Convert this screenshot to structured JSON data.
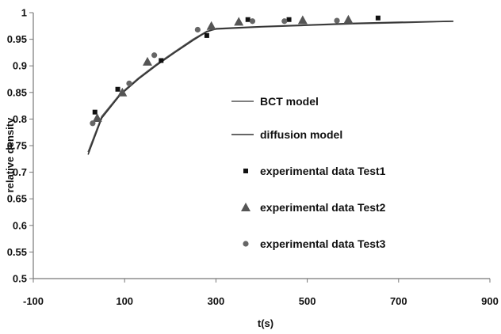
{
  "chart_data": {
    "type": "scatter",
    "title": "",
    "xlabel": "t(s)",
    "ylabel": "relative density",
    "xlim": [
      -100,
      900
    ],
    "ylim": [
      0.5,
      1
    ],
    "xticks": [
      "-100",
      "100",
      "300",
      "500",
      "700",
      "900"
    ],
    "yticks": [
      "0.5",
      "0.55",
      "0.6",
      "0.65",
      "0.7",
      "0.75",
      "0.8",
      "0.85",
      "0.9",
      "0.95",
      "1"
    ],
    "grid": false,
    "legend_position": "right-center",
    "series": [
      {
        "name": "BCT model",
        "kind": "line",
        "color": "#555555",
        "x": [
          20,
          50,
          90,
          130,
          170,
          210,
          250,
          280,
          300,
          350,
          400,
          500,
          600,
          700,
          820
        ],
        "y": [
          0.738,
          0.805,
          0.847,
          0.877,
          0.903,
          0.927,
          0.95,
          0.965,
          0.969,
          0.971,
          0.973,
          0.976,
          0.979,
          0.981,
          0.984
        ]
      },
      {
        "name": "diffusion model",
        "kind": "line",
        "color": "#333333",
        "x": [
          20,
          50,
          90,
          130,
          170,
          210,
          250,
          280,
          300,
          350,
          400,
          500,
          600,
          700,
          820
        ],
        "y": [
          0.733,
          0.802,
          0.845,
          0.875,
          0.901,
          0.925,
          0.948,
          0.964,
          0.97,
          0.972,
          0.974,
          0.977,
          0.98,
          0.982,
          0.984
        ]
      },
      {
        "name": "experimental data Test1",
        "kind": "scatter",
        "marker": "square",
        "color": "#111111",
        "x": [
          35,
          85,
          180,
          280,
          370,
          460,
          655
        ],
        "y": [
          0.813,
          0.856,
          0.91,
          0.957,
          0.987,
          0.987,
          0.99
        ]
      },
      {
        "name": "experimental data Test2",
        "kind": "scatter",
        "marker": "triangle",
        "color": "#555555",
        "x": [
          40,
          95,
          150,
          290,
          350,
          490,
          590
        ],
        "y": [
          0.802,
          0.85,
          0.908,
          0.975,
          0.983,
          0.986,
          0.987
        ]
      },
      {
        "name": "experimental data Test3",
        "kind": "scatter",
        "marker": "circle",
        "color": "#666666",
        "x": [
          30,
          110,
          165,
          260,
          380,
          450,
          565
        ],
        "y": [
          0.792,
          0.867,
          0.92,
          0.968,
          0.984,
          0.984,
          0.985
        ]
      }
    ]
  }
}
